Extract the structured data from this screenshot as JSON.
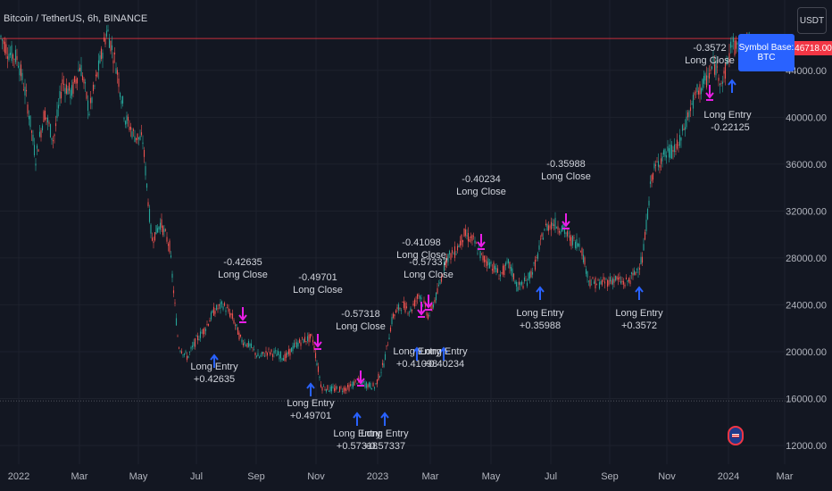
{
  "header": {
    "title": "Bitcoin / TetherUS, 6h, BINANCE"
  },
  "toolbar": {
    "currency_label": "USDT"
  },
  "legend_box": {
    "label": "Symbol Base: BTC"
  },
  "price_badge": {
    "value": "46718.00"
  },
  "colors": {
    "background": "#131722",
    "up": "#26a69a",
    "down": "#ef5350",
    "entry_arrow": "#2962ff",
    "close_arrow": "#e91ee6",
    "last_price": "#f23645",
    "grid": "#1e222d"
  },
  "chart_data": {
    "type": "candlestick",
    "title": "Bitcoin / TetherUS, 6h, BINANCE",
    "xlabel": "",
    "ylabel": "",
    "x_ticks": [
      "2022",
      "Mar",
      "May",
      "Jul",
      "Sep",
      "Nov",
      "2023",
      "Mar",
      "May",
      "Jul",
      "Sep",
      "Nov",
      "2024",
      "Mar"
    ],
    "y_ticks": [
      12000,
      16000,
      20000,
      24000,
      28000,
      32000,
      36000,
      40000,
      44000
    ],
    "y_tick_labels": [
      "12000.00",
      "16000.00",
      "20000.00",
      "24000.00",
      "28000.00",
      "32000.00",
      "36000.00",
      "40000.00",
      "44000.00"
    ],
    "ylim": [
      10400,
      50000
    ],
    "last_price": 46718,
    "horizontal_lines": [
      46718,
      15800
    ],
    "price_path": [
      [
        0,
        47000
      ],
      [
        10,
        45500
      ],
      [
        20,
        45000
      ],
      [
        30,
        41500
      ],
      [
        40,
        36500
      ],
      [
        50,
        40500
      ],
      [
        60,
        38000
      ],
      [
        70,
        43000
      ],
      [
        80,
        42000
      ],
      [
        90,
        44500
      ],
      [
        100,
        40500
      ],
      [
        110,
        44000
      ],
      [
        120,
        47500
      ],
      [
        130,
        44500
      ],
      [
        140,
        40000
      ],
      [
        150,
        38500
      ],
      [
        160,
        38000
      ],
      [
        170,
        29500
      ],
      [
        180,
        31000
      ],
      [
        190,
        29000
      ],
      [
        200,
        20500
      ],
      [
        210,
        19500
      ],
      [
        220,
        21000
      ],
      [
        230,
        22000
      ],
      [
        240,
        23500
      ],
      [
        250,
        24000
      ],
      [
        260,
        23000
      ],
      [
        270,
        21000
      ],
      [
        280,
        20500
      ],
      [
        290,
        19500
      ],
      [
        300,
        20000
      ],
      [
        310,
        19800
      ],
      [
        320,
        19500
      ],
      [
        330,
        20500
      ],
      [
        340,
        21000
      ],
      [
        350,
        21200
      ],
      [
        360,
        17000
      ],
      [
        370,
        16800
      ],
      [
        380,
        16800
      ],
      [
        390,
        16900
      ],
      [
        400,
        17500
      ],
      [
        410,
        17200
      ],
      [
        420,
        17000
      ],
      [
        430,
        19000
      ],
      [
        440,
        23000
      ],
      [
        450,
        24000
      ],
      [
        460,
        23500
      ],
      [
        470,
        25000
      ],
      [
        480,
        23000
      ],
      [
        490,
        25000
      ],
      [
        500,
        28000
      ],
      [
        510,
        28500
      ],
      [
        520,
        30000
      ],
      [
        530,
        29500
      ],
      [
        540,
        28000
      ],
      [
        550,
        27500
      ],
      [
        560,
        26500
      ],
      [
        570,
        27500
      ],
      [
        580,
        25500
      ],
      [
        590,
        26000
      ],
      [
        600,
        27500
      ],
      [
        610,
        30500
      ],
      [
        620,
        31000
      ],
      [
        630,
        30500
      ],
      [
        640,
        29500
      ],
      [
        650,
        29200
      ],
      [
        660,
        26000
      ],
      [
        670,
        25800
      ],
      [
        680,
        26000
      ],
      [
        690,
        26200
      ],
      [
        700,
        25800
      ],
      [
        710,
        26500
      ],
      [
        720,
        28000
      ],
      [
        730,
        35000
      ],
      [
        740,
        36500
      ],
      [
        750,
        37000
      ],
      [
        760,
        37500
      ],
      [
        770,
        40000
      ],
      [
        780,
        42000
      ],
      [
        790,
        43000
      ],
      [
        800,
        44500
      ],
      [
        810,
        43000
      ],
      [
        820,
        46500
      ],
      [
        830,
        45000
      ],
      [
        840,
        46718
      ]
    ],
    "trades": [
      {
        "id": 1,
        "entry": "Long Entry",
        "entry_value": "+0.42635",
        "close": "Long Close",
        "close_value": "-0.42635"
      },
      {
        "id": 2,
        "entry": "Long Entry",
        "entry_value": "+0.49701",
        "close": "Long Close",
        "close_value": "-0.49701"
      },
      {
        "id": 3,
        "entry": "Long Entry",
        "entry_value": "+0.57318",
        "close": "Long Close",
        "close_value": "-0.57318"
      },
      {
        "id": 4,
        "entry": "Long Entry",
        "entry_value": "+0.57337",
        "close": "Long Close",
        "close_value": "-0.57337"
      },
      {
        "id": 5,
        "entry": "Long Entry",
        "entry_value": "+0.41098",
        "close": "Long Close",
        "close_value": "-0.41098"
      },
      {
        "id": 6,
        "entry": "Long Entry",
        "entry_value": "+0.40234",
        "close": "Long Close",
        "close_value": "-0.40234"
      },
      {
        "id": 7,
        "entry": "Long Entry",
        "entry_value": "+0.35988",
        "close": "Long Close",
        "close_value": "-0.35988"
      },
      {
        "id": 8,
        "entry": "Long Entry",
        "entry_value": "+0.3572",
        "close": "Long Close",
        "close_value": "-0.3572"
      },
      {
        "id": 9,
        "entry": "Long Entry",
        "entry_value": "-0.22125"
      }
    ]
  }
}
